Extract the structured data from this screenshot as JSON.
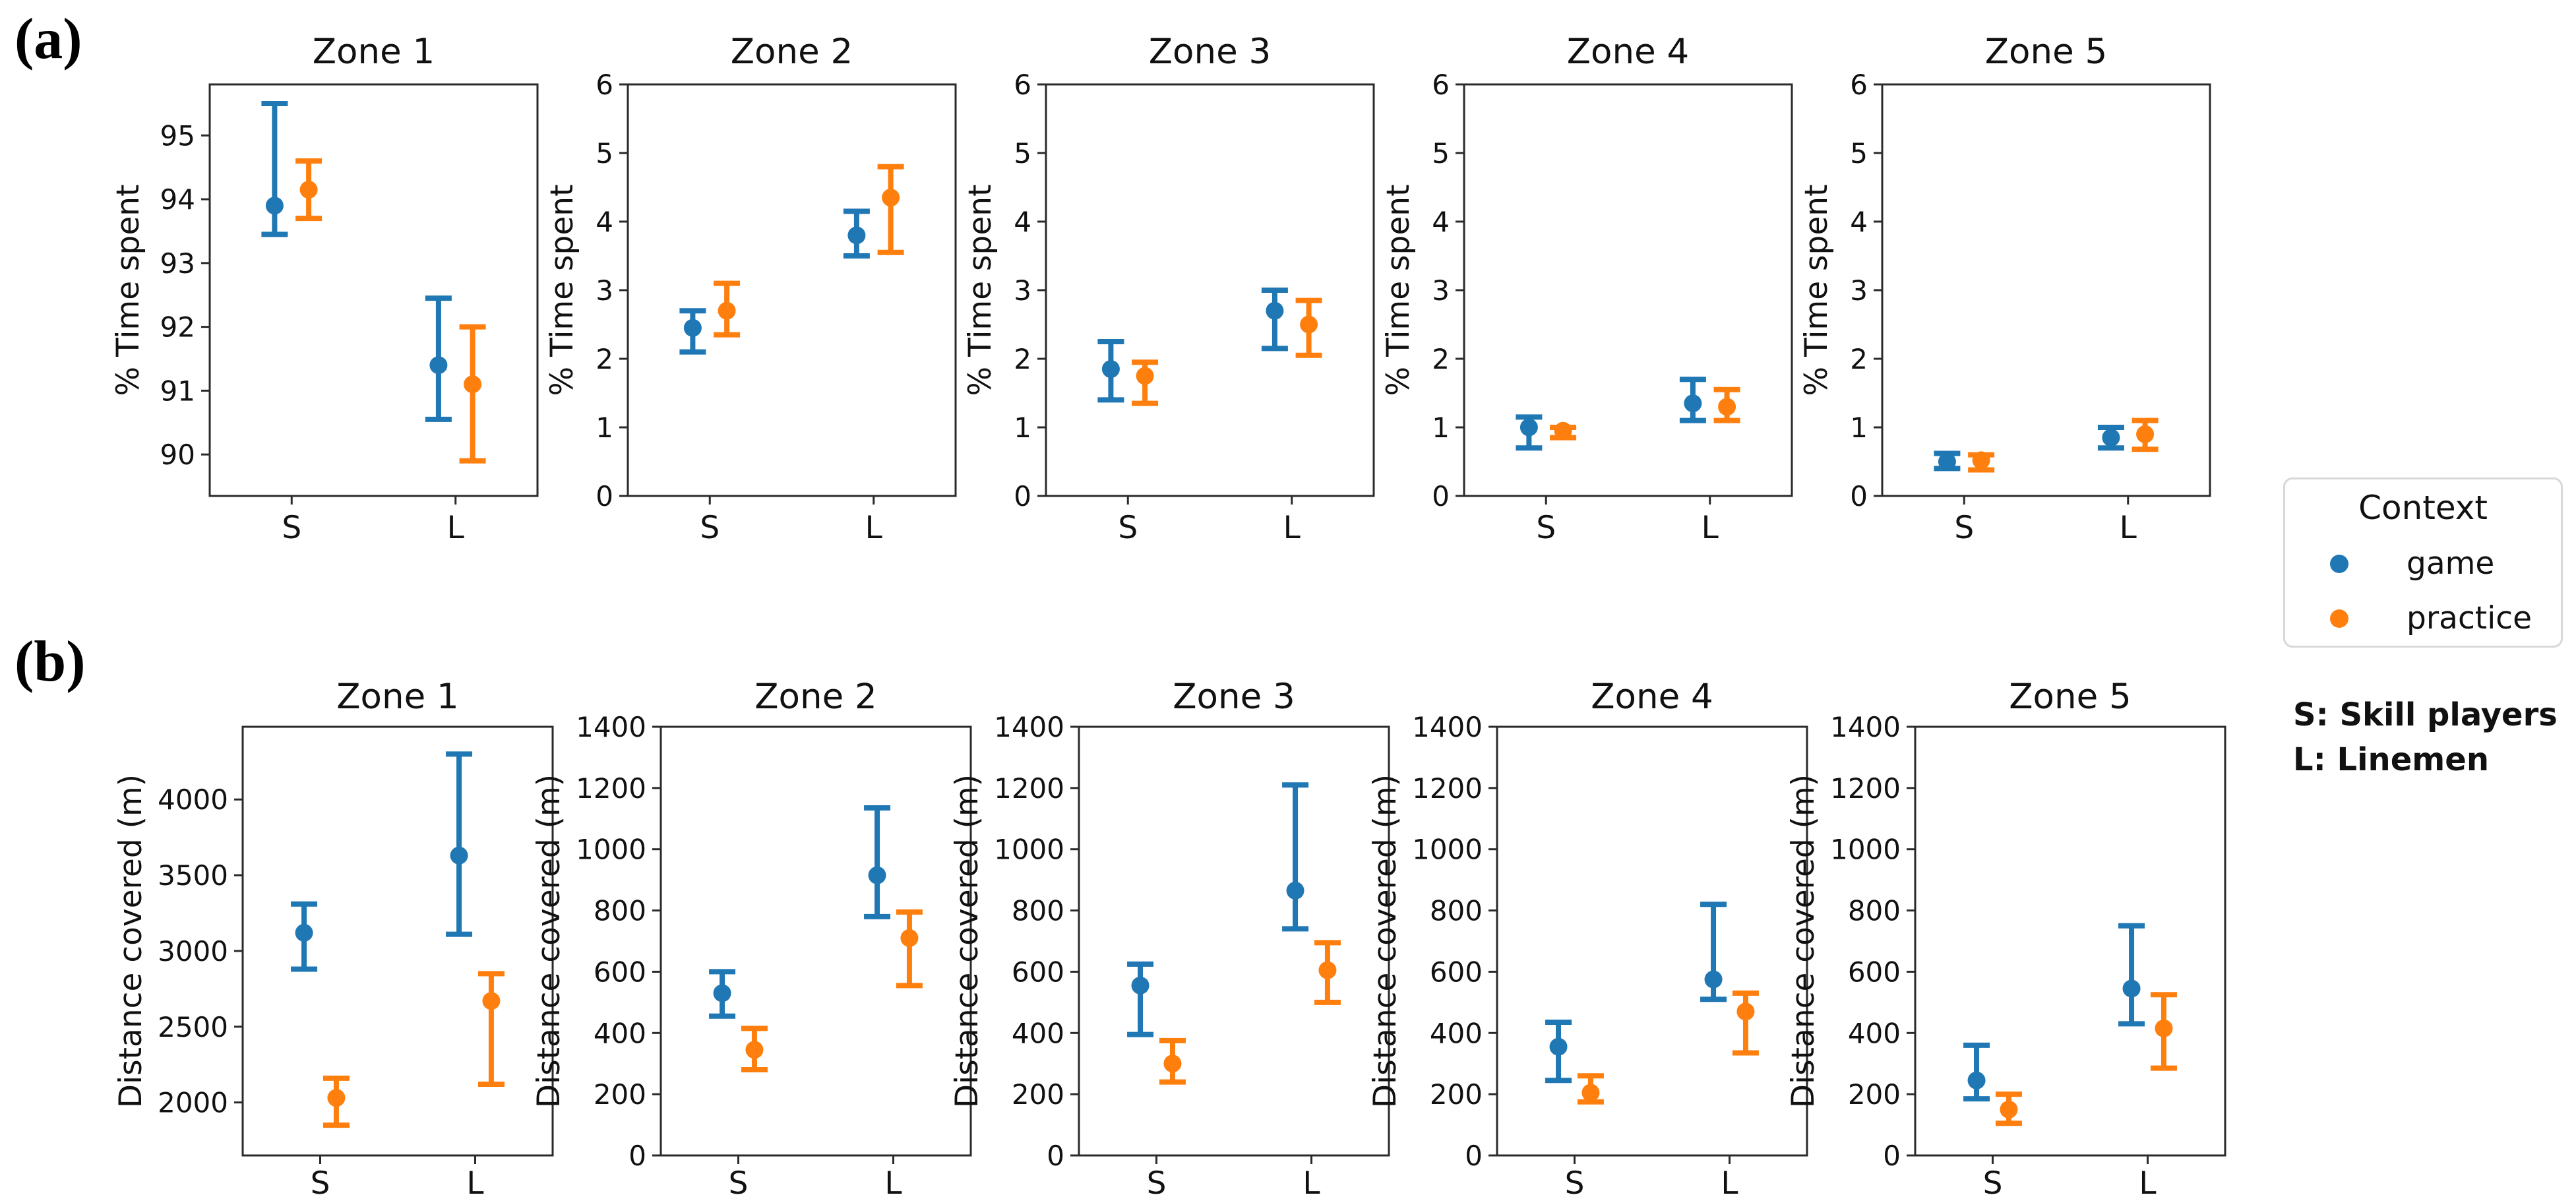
{
  "figure": {
    "panel_labels": {
      "a": "(a)",
      "b": "(b)"
    },
    "legend": {
      "title": "Context",
      "entries": [
        {
          "label": "game",
          "color": "#1f77b4"
        },
        {
          "label": "practice",
          "color": "#ff7f0e"
        }
      ]
    },
    "notes": {
      "s": "S: Skill players",
      "l": "L: Linemen"
    },
    "colors": {
      "game": "#1f77b4",
      "practice": "#ff7f0e",
      "axis": "#2a2a2a",
      "text": "#111111"
    }
  },
  "chart_data": [
    {
      "id": "a-zone1",
      "row": "a",
      "col": 0,
      "type": "scatter",
      "title": "Zone 1",
      "ylabel": "% Time spent",
      "categories": [
        "S",
        "L"
      ],
      "ylim": [
        89.35,
        95.8
      ],
      "yticks": [
        90,
        91,
        92,
        93,
        94,
        95
      ],
      "series": [
        {
          "name": "game",
          "color": "#1f77b4",
          "values": [
            93.9,
            91.4
          ],
          "err_low": [
            93.45,
            90.55
          ],
          "err_high": [
            95.5,
            92.45
          ]
        },
        {
          "name": "practice",
          "color": "#ff7f0e",
          "values": [
            94.15,
            91.1
          ],
          "err_low": [
            93.7,
            89.9
          ],
          "err_high": [
            94.6,
            92.0
          ]
        }
      ]
    },
    {
      "id": "a-zone2",
      "row": "a",
      "col": 1,
      "type": "scatter",
      "title": "Zone 2",
      "ylabel": "% Time spent",
      "categories": [
        "S",
        "L"
      ],
      "ylim": [
        0,
        6
      ],
      "yticks": [
        0,
        1,
        2,
        3,
        4,
        5,
        6
      ],
      "series": [
        {
          "name": "game",
          "color": "#1f77b4",
          "values": [
            2.45,
            3.8
          ],
          "err_low": [
            2.1,
            3.5
          ],
          "err_high": [
            2.7,
            4.15
          ]
        },
        {
          "name": "practice",
          "color": "#ff7f0e",
          "values": [
            2.7,
            4.35
          ],
          "err_low": [
            2.35,
            3.55
          ],
          "err_high": [
            3.1,
            4.8
          ]
        }
      ]
    },
    {
      "id": "a-zone3",
      "row": "a",
      "col": 2,
      "type": "scatter",
      "title": "Zone 3",
      "ylabel": "% Time spent",
      "categories": [
        "S",
        "L"
      ],
      "ylim": [
        0,
        6
      ],
      "yticks": [
        0,
        1,
        2,
        3,
        4,
        5,
        6
      ],
      "series": [
        {
          "name": "game",
          "color": "#1f77b4",
          "values": [
            1.85,
            2.7
          ],
          "err_low": [
            1.4,
            2.15
          ],
          "err_high": [
            2.25,
            3.0
          ]
        },
        {
          "name": "practice",
          "color": "#ff7f0e",
          "values": [
            1.75,
            2.5
          ],
          "err_low": [
            1.35,
            2.05
          ],
          "err_high": [
            1.95,
            2.85
          ]
        }
      ]
    },
    {
      "id": "a-zone4",
      "row": "a",
      "col": 3,
      "type": "scatter",
      "title": "Zone 4",
      "ylabel": "% Time spent",
      "categories": [
        "S",
        "L"
      ],
      "ylim": [
        0,
        6
      ],
      "yticks": [
        0,
        1,
        2,
        3,
        4,
        5,
        6
      ],
      "series": [
        {
          "name": "game",
          "color": "#1f77b4",
          "values": [
            1.0,
            1.35
          ],
          "err_low": [
            0.7,
            1.1
          ],
          "err_high": [
            1.15,
            1.7
          ]
        },
        {
          "name": "practice",
          "color": "#ff7f0e",
          "values": [
            0.95,
            1.3
          ],
          "err_low": [
            0.85,
            1.1
          ],
          "err_high": [
            1.0,
            1.55
          ]
        }
      ]
    },
    {
      "id": "a-zone5",
      "row": "a",
      "col": 4,
      "type": "scatter",
      "title": "Zone 5",
      "ylabel": "% Time spent",
      "categories": [
        "S",
        "L"
      ],
      "ylim": [
        0,
        6
      ],
      "yticks": [
        0,
        1,
        2,
        3,
        4,
        5,
        6
      ],
      "series": [
        {
          "name": "game",
          "color": "#1f77b4",
          "values": [
            0.5,
            0.85
          ],
          "err_low": [
            0.4,
            0.7
          ],
          "err_high": [
            0.62,
            1.0
          ]
        },
        {
          "name": "practice",
          "color": "#ff7f0e",
          "values": [
            0.52,
            0.9
          ],
          "err_low": [
            0.38,
            0.68
          ],
          "err_high": [
            0.6,
            1.1
          ]
        }
      ]
    },
    {
      "id": "b-zone1",
      "row": "b",
      "col": 0,
      "type": "scatter",
      "title": "Zone 1",
      "ylabel": "Distance covered (m)",
      "categories": [
        "S",
        "L"
      ],
      "ylim": [
        1650,
        4480
      ],
      "yticks": [
        2000,
        2500,
        3000,
        3500,
        4000
      ],
      "series": [
        {
          "name": "game",
          "color": "#1f77b4",
          "values": [
            3120,
            3630
          ],
          "err_low": [
            2880,
            3110
          ],
          "err_high": [
            3310,
            4300
          ]
        },
        {
          "name": "practice",
          "color": "#ff7f0e",
          "values": [
            2030,
            2670
          ],
          "err_low": [
            1850,
            2120
          ],
          "err_high": [
            2160,
            2850
          ]
        }
      ]
    },
    {
      "id": "b-zone2",
      "row": "b",
      "col": 1,
      "type": "scatter",
      "title": "Zone 2",
      "ylabel": "Distance covered (m)",
      "categories": [
        "S",
        "L"
      ],
      "ylim": [
        0,
        1400
      ],
      "yticks": [
        0,
        200,
        400,
        600,
        800,
        1000,
        1200,
        1400
      ],
      "series": [
        {
          "name": "game",
          "color": "#1f77b4",
          "values": [
            530,
            915
          ],
          "err_low": [
            455,
            780
          ],
          "err_high": [
            600,
            1135
          ]
        },
        {
          "name": "practice",
          "color": "#ff7f0e",
          "values": [
            345,
            710
          ],
          "err_low": [
            280,
            555
          ],
          "err_high": [
            415,
            795
          ]
        }
      ]
    },
    {
      "id": "b-zone3",
      "row": "b",
      "col": 2,
      "type": "scatter",
      "title": "Zone 3",
      "ylabel": "Distance covered (m)",
      "categories": [
        "S",
        "L"
      ],
      "ylim": [
        0,
        1400
      ],
      "yticks": [
        0,
        200,
        400,
        600,
        800,
        1000,
        1200,
        1400
      ],
      "series": [
        {
          "name": "game",
          "color": "#1f77b4",
          "values": [
            555,
            865
          ],
          "err_low": [
            395,
            740
          ],
          "err_high": [
            625,
            1210
          ]
        },
        {
          "name": "practice",
          "color": "#ff7f0e",
          "values": [
            300,
            605
          ],
          "err_low": [
            240,
            500
          ],
          "err_high": [
            375,
            695
          ]
        }
      ]
    },
    {
      "id": "b-zone4",
      "row": "b",
      "col": 3,
      "type": "scatter",
      "title": "Zone 4",
      "ylabel": "Distance covered (m)",
      "categories": [
        "S",
        "L"
      ],
      "ylim": [
        0,
        1400
      ],
      "yticks": [
        0,
        200,
        400,
        600,
        800,
        1000,
        1200,
        1400
      ],
      "series": [
        {
          "name": "game",
          "color": "#1f77b4",
          "values": [
            355,
            575
          ],
          "err_low": [
            245,
            510
          ],
          "err_high": [
            435,
            820
          ]
        },
        {
          "name": "practice",
          "color": "#ff7f0e",
          "values": [
            205,
            470
          ],
          "err_low": [
            175,
            335
          ],
          "err_high": [
            260,
            530
          ]
        }
      ]
    },
    {
      "id": "b-zone5",
      "row": "b",
      "col": 4,
      "type": "scatter",
      "title": "Zone 5",
      "ylabel": "Distance covered (m)",
      "categories": [
        "S",
        "L"
      ],
      "ylim": [
        0,
        1400
      ],
      "yticks": [
        0,
        200,
        400,
        600,
        800,
        1000,
        1200,
        1400
      ],
      "series": [
        {
          "name": "game",
          "color": "#1f77b4",
          "values": [
            245,
            545
          ],
          "err_low": [
            185,
            430
          ],
          "err_high": [
            360,
            750
          ]
        },
        {
          "name": "practice",
          "color": "#ff7f0e",
          "values": [
            150,
            415
          ],
          "err_low": [
            105,
            285
          ],
          "err_high": [
            200,
            525
          ]
        }
      ]
    }
  ]
}
